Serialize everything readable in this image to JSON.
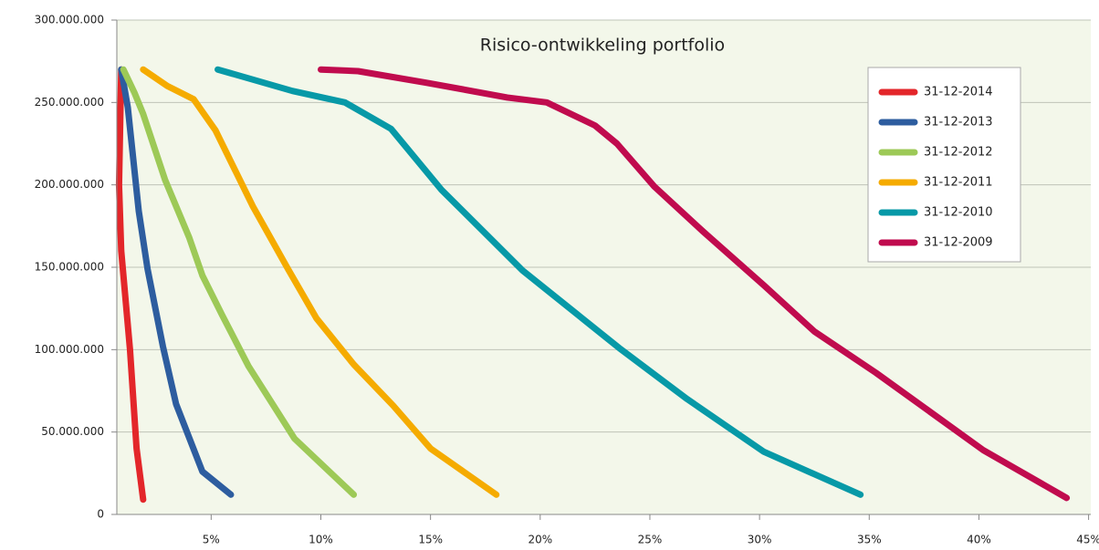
{
  "chart_data": {
    "type": "line",
    "title": "Risico-ontwikkeling portfolio",
    "xlim": [
      0.7,
      45.1
    ],
    "xticks": [
      {
        "value": 5,
        "label": "5%"
      },
      {
        "value": 10,
        "label": "10%"
      },
      {
        "value": 15,
        "label": "15%"
      },
      {
        "value": 20,
        "label": "20%"
      },
      {
        "value": 25,
        "label": "25%"
      },
      {
        "value": 30,
        "label": "30%"
      },
      {
        "value": 35,
        "label": "35%"
      },
      {
        "value": 40,
        "label": "40%"
      },
      {
        "value": 45,
        "label": "45%"
      }
    ],
    "ylim": [
      0,
      300000000
    ],
    "yticks": [
      0,
      {
        "value": 50000000,
        "label": "50.000.000"
      },
      {
        "value": 100000000,
        "label": "100.000.000"
      },
      {
        "value": 150000000,
        "label": "150.000.000"
      },
      {
        "value": 200000000,
        "label": "200.000.000"
      },
      {
        "value": 250000000,
        "label": "250.000.000"
      },
      {
        "value": 300000000,
        "label": "300.000.000"
      }
    ],
    "grid": true,
    "legend": "upper right",
    "series": [
      {
        "name": "31-12-2014",
        "color": "#e3262a",
        "x": [
          0.9,
          0.8,
          0.9,
          1.3,
          1.6,
          1.9
        ],
        "values": [
          270000000,
          200000000,
          160000000,
          100000000,
          40000000,
          9000000
        ]
      },
      {
        "name": "31-12-2013",
        "color": "#2d5d9f",
        "x": [
          0.9,
          1.2,
          1.7,
          2.1,
          2.8,
          3.4,
          4.6,
          5.9
        ],
        "values": [
          270000000,
          247000000,
          184000000,
          149000000,
          102000000,
          67000000,
          26000000,
          12000000
        ]
      },
      {
        "name": "31-12-2012",
        "color": "#9dc957",
        "x": [
          1.0,
          1.5,
          1.9,
          2.9,
          4.0,
          4.6,
          5.5,
          6.7,
          8.8,
          11.5
        ],
        "values": [
          270000000,
          256000000,
          243000000,
          203000000,
          168000000,
          145000000,
          121000000,
          90000000,
          46000000,
          12000000
        ]
      },
      {
        "name": "31-12-2011",
        "color": "#f5ab00",
        "x": [
          1.9,
          3.0,
          4.2,
          5.2,
          6.9,
          8.5,
          9.8,
          11.5,
          13.3,
          15.0,
          18.0
        ],
        "values": [
          270000000,
          260000000,
          252000000,
          233000000,
          187000000,
          149000000,
          119000000,
          91000000,
          66000000,
          40000000,
          12000000
        ]
      },
      {
        "name": "31-12-2010",
        "color": "#0799a7",
        "x": [
          5.3,
          8.7,
          11.1,
          13.2,
          15.5,
          19.2,
          23.6,
          26.7,
          30.2,
          34.6
        ],
        "values": [
          270000000,
          257000000,
          250000000,
          234000000,
          197000000,
          148000000,
          101000000,
          70000000,
          38000000,
          12000000
        ]
      },
      {
        "name": "31-12-2009",
        "color": "#c00b4e",
        "x": [
          10.0,
          11.7,
          14.8,
          18.5,
          20.3,
          22.5,
          23.5,
          25.2,
          27.4,
          30.2,
          32.5,
          35.3,
          40.2,
          44.0
        ],
        "values": [
          270000000,
          269000000,
          262000000,
          253000000,
          250000000,
          236000000,
          225000000,
          199000000,
          172000000,
          139000000,
          111000000,
          86000000,
          39000000,
          10000000
        ]
      }
    ]
  }
}
